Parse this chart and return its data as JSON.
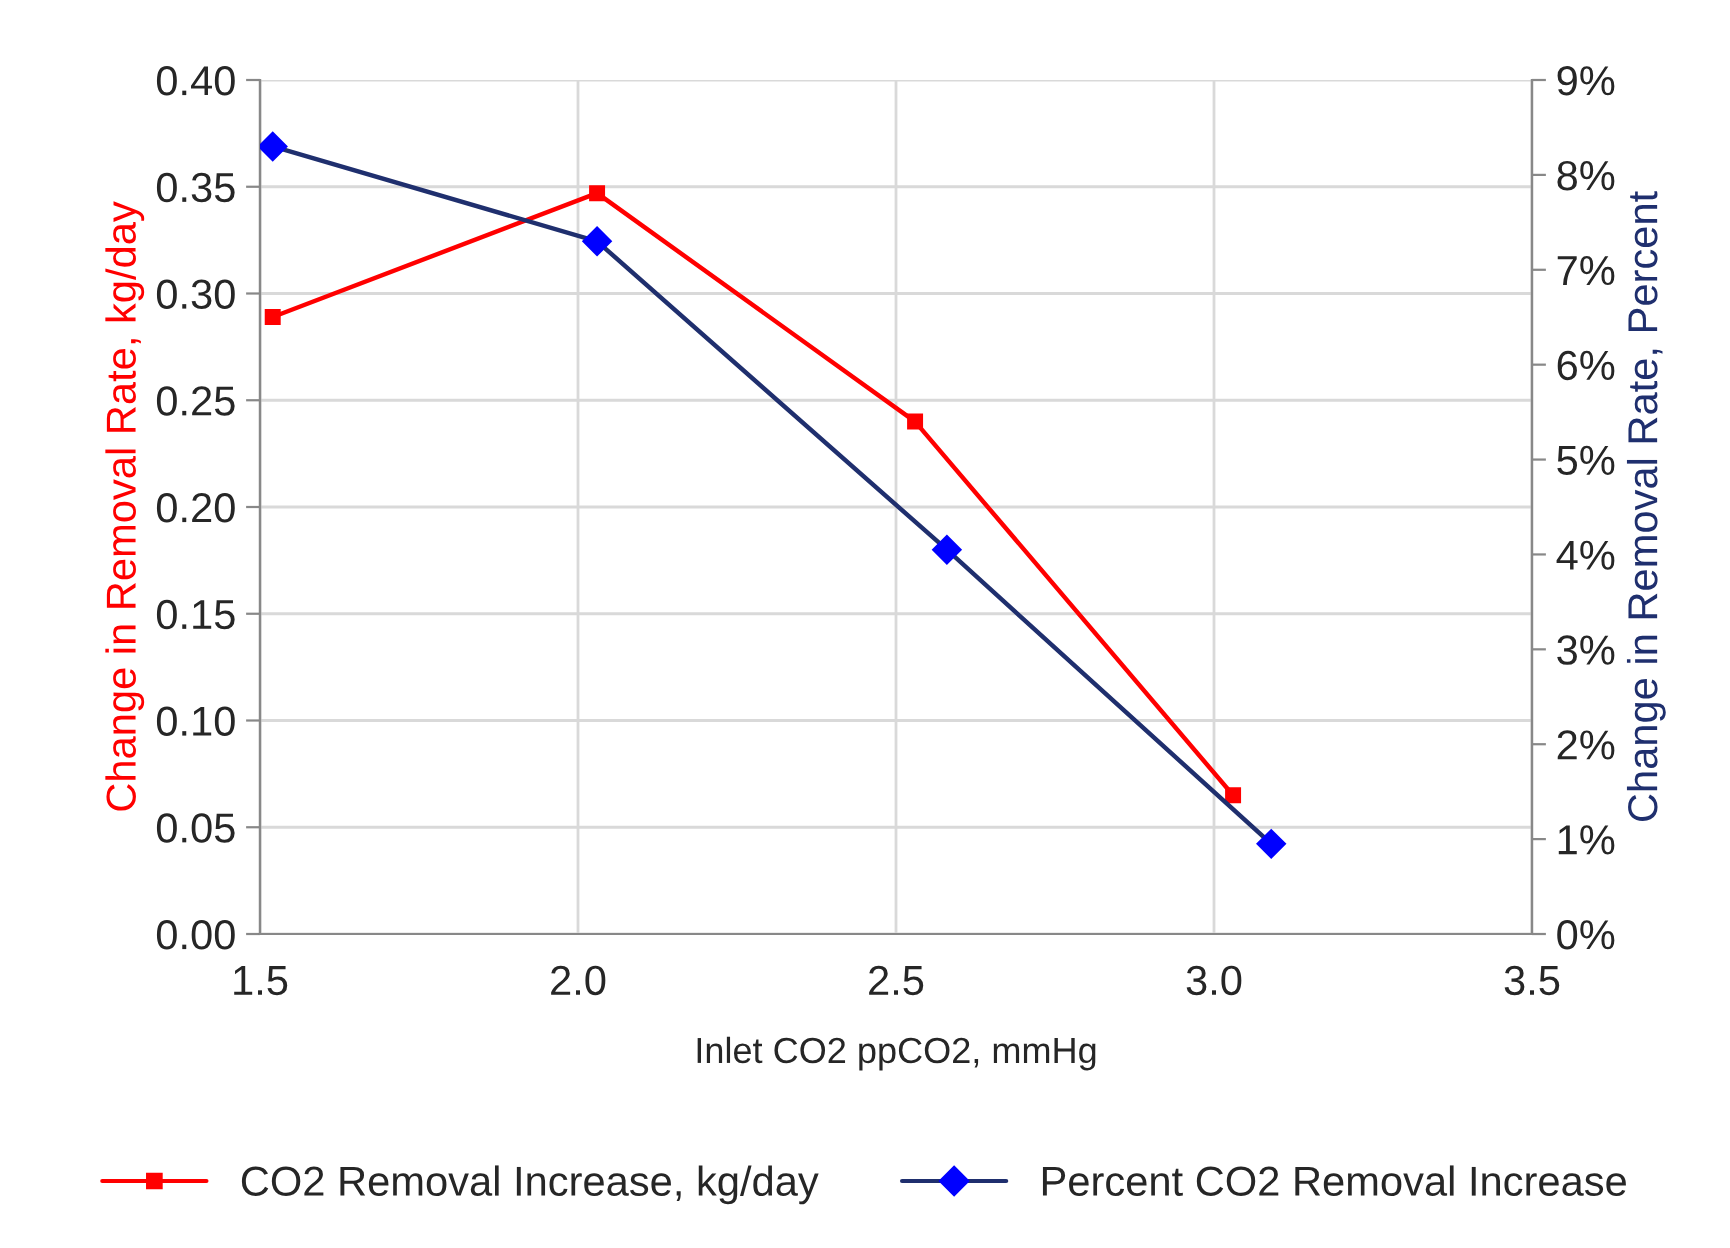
{
  "chart_data": {
    "type": "line",
    "xlabel": "Inlet CO2 ppCO2, mmHg",
    "ylabel": "Change in Removal Rate, kg/day",
    "y2label": "Change in Removal Rate, Percent",
    "xlim": [
      1.5,
      3.5
    ],
    "xticks": [
      {
        "value": 1.5,
        "label": "1.5"
      },
      {
        "value": 2,
        "label": "2.0"
      },
      {
        "value": 2.5,
        "label": "2.5"
      },
      {
        "value": 3,
        "label": "3.0"
      },
      {
        "value": 3.5,
        "label": "3.5"
      }
    ],
    "ylim": [
      0,
      0.4
    ],
    "yticks": [
      {
        "value": 0,
        "label": "0.00"
      },
      {
        "value": 0.05,
        "label": "0.05"
      },
      {
        "value": 0.1,
        "label": "0.10"
      },
      {
        "value": 0.15,
        "label": "0.15"
      },
      {
        "value": 0.2,
        "label": "0.20"
      },
      {
        "value": 0.25,
        "label": "0.25"
      },
      {
        "value": 0.3,
        "label": "0.30"
      },
      {
        "value": 0.35,
        "label": "0.35"
      },
      {
        "value": 0.4,
        "label": "0.40"
      }
    ],
    "y2lim": [
      0,
      9
    ],
    "y2ticks": [
      {
        "value": 0,
        "label": "0%"
      },
      {
        "value": 1,
        "label": "1%"
      },
      {
        "value": 2,
        "label": "2%"
      },
      {
        "value": 3,
        "label": "3%"
      },
      {
        "value": 4,
        "label": "4%"
      },
      {
        "value": 5,
        "label": "5%"
      },
      {
        "value": 6,
        "label": "6%"
      },
      {
        "value": 7,
        "label": "7%"
      },
      {
        "value": 8,
        "label": "8%"
      },
      {
        "value": 9,
        "label": "9%"
      }
    ],
    "grid": true,
    "legend": "bottom",
    "line_style": "solid",
    "series": [
      {
        "name": "CO2 Removal Increase, kg/day",
        "color": "#ff0000",
        "marker": "square",
        "x": [
          1.52,
          2.03,
          2.53,
          3.03
        ],
        "values": [
          0.289,
          0.347,
          0.24,
          0.065
        ]
      },
      {
        "name": "Percent CO2 Removal Increase",
        "color": "#1f2f6e",
        "marker": "diamond",
        "axis": "y2",
        "x": [
          1.52,
          2.03,
          2.58,
          3.09
        ],
        "values": [
          8.3,
          7.3,
          4.05,
          0.95
        ]
      }
    ]
  }
}
